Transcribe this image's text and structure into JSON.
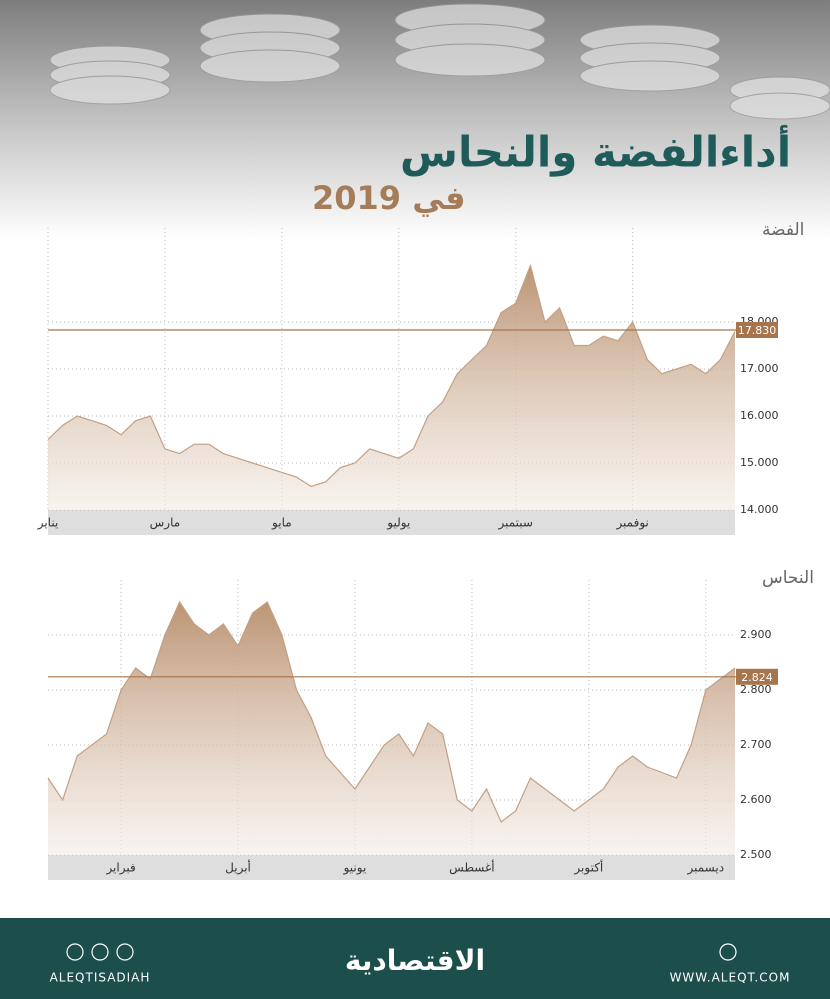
{
  "header": {
    "title": "أداءالفضة والنحاس",
    "subtitle": "في 2019"
  },
  "chart_data": [
    {
      "type": "area",
      "title": "الفضة",
      "color": "#c3a084",
      "grid": true,
      "categories": [
        "يناير",
        null,
        null,
        null,
        null,
        null,
        null,
        null,
        "مارس",
        null,
        null,
        null,
        null,
        null,
        null,
        null,
        "مايو",
        null,
        null,
        null,
        null,
        null,
        null,
        null,
        "يوليو",
        null,
        null,
        null,
        null,
        null,
        null,
        null,
        "سبتمبر",
        null,
        null,
        null,
        null,
        null,
        null,
        null,
        "نوفمبر",
        null,
        null,
        null,
        null,
        null,
        null,
        null
      ],
      "values": [
        15.5,
        15.8,
        16.0,
        15.9,
        15.8,
        15.6,
        15.9,
        16.0,
        15.3,
        15.2,
        15.4,
        15.4,
        15.2,
        15.1,
        15.0,
        14.9,
        14.8,
        14.7,
        14.5,
        14.6,
        14.9,
        15.0,
        15.3,
        15.2,
        15.1,
        15.3,
        16.0,
        16.3,
        16.9,
        17.2,
        17.5,
        18.2,
        18.4,
        19.2,
        18.0,
        18.3,
        17.5,
        17.5,
        17.7,
        17.6,
        18.0,
        17.2,
        16.9,
        17.0,
        17.1,
        16.9,
        17.2,
        17.8
      ],
      "ylim": [
        14,
        20
      ],
      "yticks": [
        {
          "value": 14,
          "label": "14.000"
        },
        {
          "value": 15,
          "label": "15.000"
        },
        {
          "value": 16,
          "label": "16.000"
        },
        {
          "value": 17,
          "label": "17.000"
        },
        {
          "value": 18,
          "label": "18.000"
        }
      ],
      "reference": {
        "value": 17.83,
        "label": "17.830"
      }
    },
    {
      "type": "area",
      "title": "النحاس",
      "color": "#c3a084",
      "grid": true,
      "categories": [
        null,
        null,
        null,
        null,
        null,
        "فبراير",
        null,
        null,
        null,
        null,
        null,
        null,
        null,
        "أبريل",
        null,
        null,
        null,
        null,
        null,
        null,
        null,
        "يونيو",
        null,
        null,
        null,
        null,
        null,
        null,
        null,
        "أغسطس",
        null,
        null,
        null,
        null,
        null,
        null,
        null,
        "أكتوبر",
        null,
        null,
        null,
        null,
        null,
        null,
        null,
        "ديسمبر",
        null,
        null
      ],
      "values": [
        2.64,
        2.6,
        2.68,
        2.7,
        2.72,
        2.8,
        2.84,
        2.82,
        2.9,
        2.96,
        2.92,
        2.9,
        2.92,
        2.88,
        2.94,
        2.96,
        2.9,
        2.8,
        2.75,
        2.68,
        2.65,
        2.62,
        2.66,
        2.7,
        2.72,
        2.68,
        2.74,
        2.72,
        2.6,
        2.58,
        2.62,
        2.56,
        2.58,
        2.64,
        2.62,
        2.6,
        2.58,
        2.6,
        2.62,
        2.66,
        2.68,
        2.66,
        2.65,
        2.64,
        2.7,
        2.8,
        2.82,
        2.84
      ],
      "ylim": [
        2.5,
        3.0
      ],
      "yticks": [
        {
          "value": 2.5,
          "label": "2.500"
        },
        {
          "value": 2.6,
          "label": "2.600"
        },
        {
          "value": 2.7,
          "label": "2.700"
        },
        {
          "value": 2.8,
          "label": "2.800"
        },
        {
          "value": 2.9,
          "label": "2.900"
        }
      ],
      "reference": {
        "value": 2.824,
        "label": "2.824"
      }
    }
  ],
  "footer": {
    "handle": "ALEQTISADIAH",
    "logo": "الاقتصادية",
    "website": "WWW.ALEQT.COM"
  }
}
